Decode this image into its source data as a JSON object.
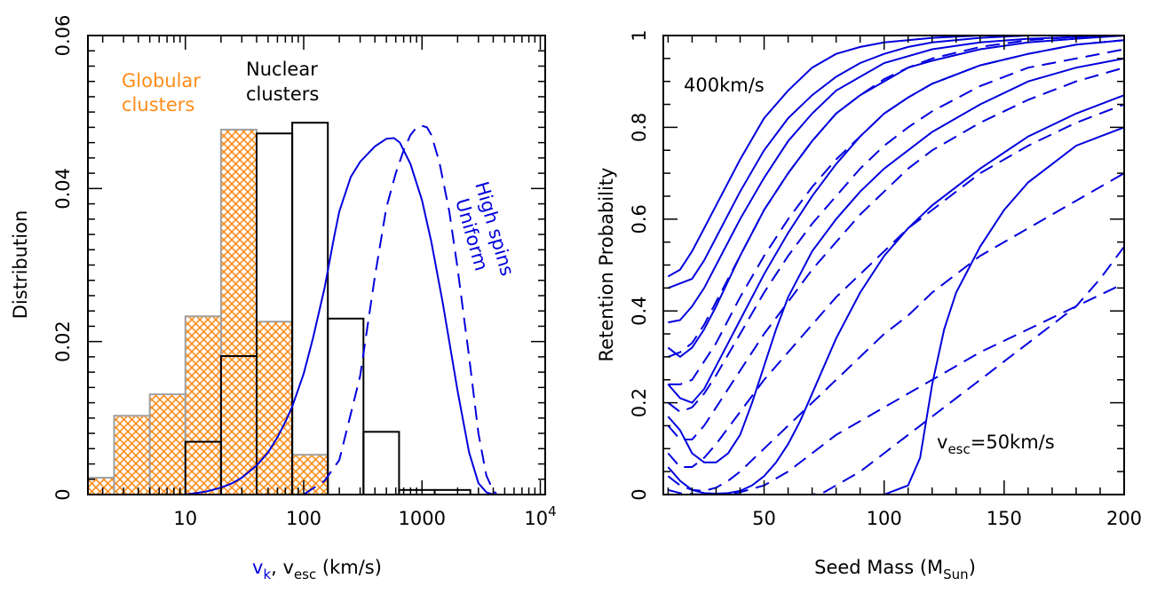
{
  "colors": {
    "globular": "#ff8c1a",
    "globular_edge": "#a0a0a0",
    "nuclear": "#000000",
    "curve": "#0000dd"
  },
  "chart_data": [
    {
      "type": "histogram",
      "title": "",
      "ylabel": "Distribution",
      "xlabel_parts": [
        {
          "text": "v",
          "color": "#0000dd"
        },
        {
          "text": "k",
          "sub": true,
          "color": "#0000dd"
        },
        {
          "text": ", v",
          "color": "#000000"
        },
        {
          "text": "esc",
          "sub": true,
          "color": "#000000"
        },
        {
          "text": " (km/s)",
          "color": "#000000"
        }
      ],
      "x_scale": "log",
      "xlim": [
        1.5,
        11000
      ],
      "ylim": [
        0,
        0.06
      ],
      "x_ticks": [
        {
          "value": 10,
          "label": "10"
        },
        {
          "value": 100,
          "label": "100"
        },
        {
          "value": 1000,
          "label": "1000"
        },
        {
          "value": 10000,
          "label": "10",
          "sup": "4"
        }
      ],
      "y_ticks": [
        {
          "value": 0,
          "label": "0"
        },
        {
          "value": 0.02,
          "label": "0.02"
        },
        {
          "value": 0.04,
          "label": "0.04"
        },
        {
          "value": 0.06,
          "label": "0.06"
        }
      ],
      "globular_bins": [
        {
          "x0": 1.25,
          "x1": 2.5,
          "value": 0.0022
        },
        {
          "x0": 2.5,
          "x1": 5,
          "value": 0.0103
        },
        {
          "x0": 5,
          "x1": 10,
          "value": 0.0131
        },
        {
          "x0": 10,
          "x1": 20,
          "value": 0.0233
        },
        {
          "x0": 20,
          "x1": 40,
          "value": 0.0477
        },
        {
          "x0": 40,
          "x1": 80,
          "value": 0.0226
        },
        {
          "x0": 80,
          "x1": 160,
          "value": 0.0052
        }
      ],
      "nuclear_bins": [
        {
          "x0": 10,
          "x1": 20,
          "value": 0.0069
        },
        {
          "x0": 20,
          "x1": 40,
          "value": 0.0181
        },
        {
          "x0": 40,
          "x1": 80,
          "value": 0.0472
        },
        {
          "x0": 80,
          "x1": 160,
          "value": 0.0486
        },
        {
          "x0": 160,
          "x1": 320,
          "value": 0.023
        },
        {
          "x0": 320,
          "x1": 640,
          "value": 0.0082
        },
        {
          "x0": 640,
          "x1": 1280,
          "value": 0.0006
        },
        {
          "x0": 1280,
          "x1": 2560,
          "value": 0.0006
        }
      ],
      "series": [
        {
          "name": "Uniform",
          "style": "solid",
          "x": [
            10,
            15,
            20,
            25,
            30,
            40,
            50,
            60,
            70,
            80,
            100,
            120,
            150,
            180,
            200,
            250,
            300,
            400,
            500,
            580,
            650,
            800,
            1000,
            1200,
            1500,
            2000,
            2500,
            3000,
            3500,
            4000
          ],
          "y": [
            0,
            0.0004,
            0.0009,
            0.0015,
            0.0022,
            0.0038,
            0.0055,
            0.0075,
            0.0095,
            0.0115,
            0.0158,
            0.0205,
            0.027,
            0.0335,
            0.037,
            0.0415,
            0.0435,
            0.0455,
            0.0465,
            0.0466,
            0.046,
            0.0432,
            0.0385,
            0.033,
            0.025,
            0.0135,
            0.0055,
            0.0015,
            0.0003,
            0
          ]
        },
        {
          "name": "High spins",
          "style": "dashed",
          "x": [
            100,
            150,
            200,
            300,
            400,
            500,
            600,
            700,
            800,
            900,
            1000,
            1100,
            1200,
            1400,
            1700,
            2000,
            2500,
            3000,
            3500,
            4000,
            4300
          ],
          "y": [
            0,
            0.0018,
            0.0045,
            0.0155,
            0.0285,
            0.0375,
            0.042,
            0.045,
            0.047,
            0.048,
            0.0482,
            0.048,
            0.047,
            0.0435,
            0.037,
            0.0295,
            0.018,
            0.008,
            0.0025,
            0.0005,
            0
          ]
        }
      ],
      "annotations": {
        "globular": [
          "Globular",
          "clusters"
        ],
        "nuclear": [
          "Nuclear",
          "clusters"
        ],
        "high_spins": "High spins",
        "uniform": "Uniform"
      }
    },
    {
      "type": "line",
      "title": "",
      "ylabel": "Retention Probability",
      "xlabel_parts": [
        {
          "text": "Seed Mass (M"
        },
        {
          "text": "Sun",
          "sub": true
        },
        {
          "text": ")"
        }
      ],
      "xlim": [
        8,
        200
      ],
      "ylim": [
        0,
        1
      ],
      "x_ticks": [
        {
          "value": 50,
          "label": "50"
        },
        {
          "value": 100,
          "label": "100"
        },
        {
          "value": 150,
          "label": "150"
        },
        {
          "value": 200,
          "label": "200"
        }
      ],
      "y_ticks": [
        {
          "value": 0,
          "label": "0"
        },
        {
          "value": 0.2,
          "label": "0.2"
        },
        {
          "value": 0.4,
          "label": "0.4"
        },
        {
          "value": 0.6,
          "label": "0.6"
        },
        {
          "value": 0.8,
          "label": "0.8"
        },
        {
          "value": 1,
          "label": "1"
        }
      ],
      "annotations": {
        "top": "400km/s",
        "bottom_parts": [
          {
            "text": "v"
          },
          {
            "text": "esc",
            "sub": true
          },
          {
            "text": "=50km/s"
          }
        ]
      },
      "series": [
        {
          "style": "solid",
          "x": [
            10,
            15,
            20,
            25,
            30,
            40,
            50,
            60,
            70,
            80,
            90,
            100,
            110,
            120,
            140,
            160,
            180,
            200
          ],
          "y": [
            0.475,
            0.49,
            0.53,
            0.58,
            0.63,
            0.73,
            0.82,
            0.88,
            0.93,
            0.96,
            0.975,
            0.985,
            0.99,
            0.995,
            1,
            1,
            1,
            1
          ]
        },
        {
          "style": "solid",
          "x": [
            10,
            15,
            20,
            25,
            30,
            40,
            50,
            60,
            70,
            80,
            90,
            100,
            110,
            120,
            140,
            160,
            180,
            200
          ],
          "y": [
            0.45,
            0.46,
            0.47,
            0.51,
            0.56,
            0.66,
            0.75,
            0.82,
            0.87,
            0.91,
            0.94,
            0.96,
            0.975,
            0.985,
            0.995,
            1,
            1,
            1
          ]
        },
        {
          "style": "solid",
          "x": [
            10,
            15,
            20,
            25,
            30,
            40,
            50,
            60,
            70,
            80,
            90,
            100,
            110,
            120,
            140,
            160,
            180,
            200
          ],
          "y": [
            0.375,
            0.38,
            0.41,
            0.45,
            0.5,
            0.6,
            0.69,
            0.77,
            0.83,
            0.88,
            0.91,
            0.94,
            0.955,
            0.97,
            0.985,
            0.993,
            0.997,
            1
          ]
        },
        {
          "style": "solid",
          "x": [
            10,
            15,
            20,
            25,
            30,
            40,
            50,
            60,
            70,
            80,
            90,
            100,
            110,
            120,
            140,
            160,
            180,
            200
          ],
          "y": [
            0.32,
            0.3,
            0.32,
            0.36,
            0.41,
            0.52,
            0.62,
            0.7,
            0.77,
            0.83,
            0.87,
            0.9,
            0.93,
            0.945,
            0.97,
            0.985,
            0.993,
            1
          ]
        },
        {
          "style": "solid",
          "x": [
            10,
            15,
            20,
            25,
            30,
            40,
            50,
            60,
            70,
            80,
            90,
            100,
            110,
            120,
            140,
            160,
            180,
            200
          ],
          "y": [
            0.24,
            0.21,
            0.2,
            0.23,
            0.28,
            0.38,
            0.48,
            0.57,
            0.65,
            0.72,
            0.78,
            0.83,
            0.865,
            0.895,
            0.935,
            0.96,
            0.98,
            0.99
          ]
        },
        {
          "style": "solid",
          "x": [
            10,
            15,
            20,
            25,
            30,
            35,
            40,
            45,
            50,
            55,
            60,
            70,
            80,
            90,
            100,
            110,
            120,
            140,
            160,
            180,
            200
          ],
          "y": [
            0.17,
            0.14,
            0.09,
            0.07,
            0.07,
            0.09,
            0.13,
            0.2,
            0.28,
            0.36,
            0.43,
            0.53,
            0.6,
            0.66,
            0.71,
            0.75,
            0.79,
            0.85,
            0.9,
            0.93,
            0.95
          ]
        },
        {
          "style": "solid",
          "x": [
            10,
            15,
            20,
            25,
            30,
            35,
            40,
            45,
            50,
            55,
            60,
            65,
            70,
            80,
            90,
            100,
            110,
            120,
            140,
            160,
            180,
            200
          ],
          "y": [
            0.06,
            0.03,
            0.01,
            0.003,
            0.002,
            0.003,
            0.008,
            0.02,
            0.04,
            0.07,
            0.11,
            0.16,
            0.22,
            0.34,
            0.44,
            0.52,
            0.58,
            0.63,
            0.71,
            0.78,
            0.83,
            0.87
          ]
        },
        {
          "style": "solid",
          "x": [
            10,
            20,
            30,
            40,
            50,
            60,
            70,
            80,
            90,
            100,
            110,
            115,
            120,
            125,
            130,
            140,
            150,
            160,
            170,
            180,
            190,
            200
          ],
          "y": [
            0,
            0,
            0,
            0,
            0,
            0,
            0,
            0,
            0,
            0,
            0.02,
            0.08,
            0.24,
            0.36,
            0.44,
            0.54,
            0.62,
            0.68,
            0.72,
            0.76,
            0.78,
            0.8
          ]
        },
        {
          "style": "dashed",
          "x": [
            10,
            15,
            20,
            25,
            30,
            40,
            50,
            60,
            70,
            80,
            90,
            100,
            110,
            120,
            140,
            160,
            180,
            200
          ],
          "y": [
            0.3,
            0.31,
            0.33,
            0.37,
            0.42,
            0.52,
            0.62,
            0.7,
            0.77,
            0.83,
            0.87,
            0.905,
            0.93,
            0.95,
            0.975,
            0.99,
            0.997,
            1
          ]
        },
        {
          "style": "dashed",
          "x": [
            10,
            15,
            20,
            25,
            30,
            40,
            50,
            60,
            70,
            80,
            90,
            100,
            110,
            120,
            140,
            160,
            180,
            200
          ],
          "y": [
            0.24,
            0.24,
            0.25,
            0.29,
            0.33,
            0.43,
            0.52,
            0.6,
            0.67,
            0.73,
            0.78,
            0.83,
            0.865,
            0.895,
            0.935,
            0.96,
            0.98,
            0.99
          ]
        },
        {
          "style": "dashed",
          "x": [
            10,
            15,
            20,
            25,
            30,
            40,
            50,
            60,
            70,
            80,
            90,
            100,
            110,
            120,
            140,
            160,
            180,
            200
          ],
          "y": [
            0.2,
            0.18,
            0.19,
            0.22,
            0.26,
            0.35,
            0.44,
            0.52,
            0.59,
            0.65,
            0.71,
            0.76,
            0.8,
            0.835,
            0.89,
            0.93,
            0.95,
            0.97
          ]
        },
        {
          "style": "dashed",
          "x": [
            10,
            15,
            20,
            25,
            30,
            40,
            50,
            60,
            70,
            80,
            90,
            100,
            110,
            120,
            140,
            160,
            180,
            200
          ],
          "y": [
            0.15,
            0.12,
            0.12,
            0.15,
            0.19,
            0.27,
            0.35,
            0.42,
            0.49,
            0.55,
            0.61,
            0.66,
            0.71,
            0.75,
            0.81,
            0.86,
            0.9,
            0.93
          ]
        },
        {
          "style": "dashed",
          "x": [
            10,
            15,
            20,
            25,
            30,
            40,
            50,
            60,
            70,
            80,
            90,
            100,
            110,
            120,
            140,
            160,
            180,
            200
          ],
          "y": [
            0.09,
            0.06,
            0.06,
            0.08,
            0.11,
            0.18,
            0.25,
            0.31,
            0.37,
            0.43,
            0.48,
            0.53,
            0.58,
            0.62,
            0.7,
            0.76,
            0.81,
            0.85
          ]
        },
        {
          "style": "dashed",
          "x": [
            10,
            15,
            20,
            25,
            30,
            35,
            40,
            50,
            60,
            70,
            80,
            90,
            100,
            110,
            120,
            140,
            160,
            180,
            200
          ],
          "y": [
            0.04,
            0.02,
            0.01,
            0.008,
            0.015,
            0.03,
            0.05,
            0.1,
            0.15,
            0.2,
            0.25,
            0.3,
            0.35,
            0.39,
            0.44,
            0.52,
            0.58,
            0.64,
            0.7
          ]
        },
        {
          "style": "dashed",
          "x": [
            10,
            15,
            20,
            25,
            30,
            35,
            40,
            50,
            60,
            70,
            80,
            90,
            100,
            110,
            120,
            140,
            160,
            180,
            200
          ],
          "y": [
            0.01,
            0.003,
            0.001,
            0,
            0,
            0.002,
            0.005,
            0.02,
            0.05,
            0.09,
            0.13,
            0.16,
            0.19,
            0.22,
            0.25,
            0.31,
            0.36,
            0.41,
            0.46
          ]
        },
        {
          "style": "dashed",
          "x": [
            10,
            20,
            30,
            40,
            50,
            60,
            70,
            75,
            80,
            90,
            100,
            110,
            120,
            130,
            140,
            150,
            160,
            170,
            180,
            190,
            200
          ],
          "y": [
            0,
            0,
            0,
            0,
            0,
            0,
            0,
            0.005,
            0.02,
            0.05,
            0.09,
            0.13,
            0.17,
            0.21,
            0.25,
            0.29,
            0.33,
            0.37,
            0.41,
            0.47,
            0.54
          ]
        }
      ]
    }
  ]
}
